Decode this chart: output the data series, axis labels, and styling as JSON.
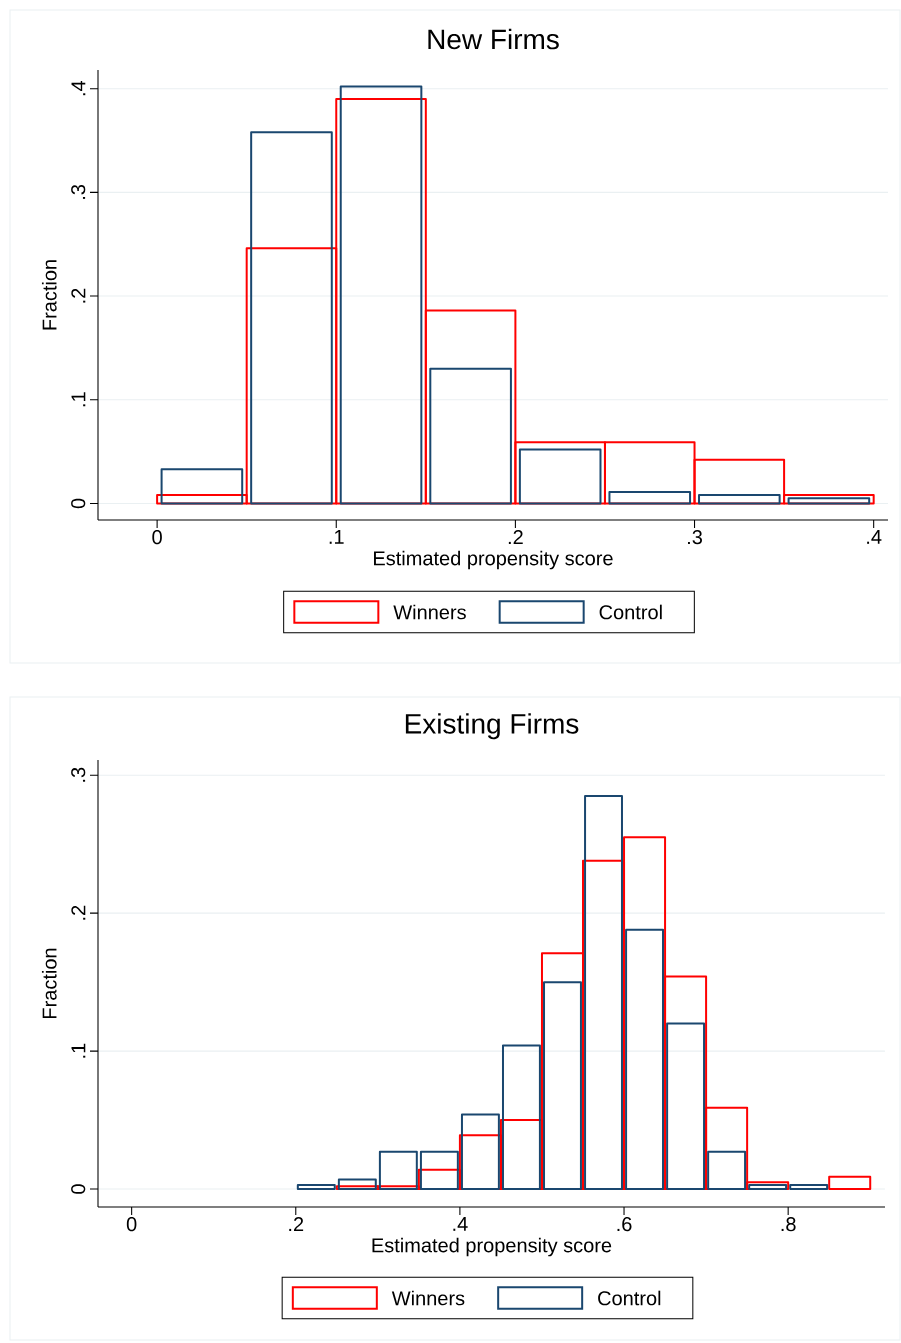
{
  "chart_data": [
    {
      "type": "histogram",
      "title": "New Firms",
      "xlabel": "Estimated propensity score",
      "ylabel": "Fraction",
      "bins": [
        0,
        0.05,
        0.1,
        0.15,
        0.2,
        0.25,
        0.3,
        0.35,
        0.4
      ],
      "series": [
        {
          "name": "Winners",
          "color": "#ff0000",
          "values": [
            0.008,
            0.246,
            0.39,
            0.186,
            0.059,
            0.059,
            0.042,
            0.008
          ]
        },
        {
          "name": "Control",
          "color": "#1a476f",
          "values": [
            0.033,
            0.358,
            0.402,
            0.13,
            0.052,
            0.011,
            0.008,
            0.005
          ]
        }
      ],
      "xlim": [
        -0.033,
        0.408
      ],
      "ylim": [
        -0.016,
        0.418
      ],
      "xticks": [
        0,
        {
          "value": 0.1,
          "label": ".1"
        },
        {
          "value": 0.2,
          "label": ".2"
        },
        {
          "value": 0.3,
          "label": ".3"
        },
        {
          "value": 0.4,
          "label": ".4"
        }
      ],
      "yticks": [
        0,
        {
          "value": 0.1,
          "label": ".1"
        },
        {
          "value": 0.2,
          "label": ".2"
        },
        {
          "value": 0.3,
          "label": ".3"
        },
        {
          "value": 0.4,
          "label": ".4"
        }
      ],
      "grid": "y",
      "legend": "bottom"
    },
    {
      "type": "histogram",
      "title": "Existing Firms",
      "xlabel": "Estimated propensity score",
      "ylabel": "Fraction",
      "bins": [
        0.2,
        0.25,
        0.3,
        0.35,
        0.4,
        0.45,
        0.5,
        0.55,
        0.6,
        0.65,
        0.7,
        0.75,
        0.8,
        0.85,
        0.9
      ],
      "series": [
        {
          "name": "Winners",
          "color": "#ff0000",
          "values": [
            null,
            0.002,
            0.002,
            0.014,
            0.039,
            0.05,
            0.171,
            0.238,
            0.255,
            0.154,
            0.059,
            0.005,
            null,
            0.009
          ]
        },
        {
          "name": "Control",
          "color": "#1a476f",
          "values": [
            0.003,
            0.007,
            0.027,
            0.027,
            0.054,
            0.104,
            0.15,
            0.285,
            0.188,
            0.12,
            0.027,
            0.003,
            0.003,
            null
          ]
        }
      ],
      "xlim": [
        -0.041,
        0.918
      ],
      "ylim": [
        -0.013,
        0.311
      ],
      "xticks": [
        0,
        {
          "value": 0.2,
          "label": ".2"
        },
        {
          "value": 0.4,
          "label": ".4"
        },
        {
          "value": 0.6,
          "label": ".6"
        },
        {
          "value": 0.8,
          "label": ".8"
        }
      ],
      "yticks": [
        0,
        {
          "value": 0.1,
          "label": ".1"
        },
        {
          "value": 0.2,
          "label": ".2"
        },
        {
          "value": 0.3,
          "label": ".3"
        }
      ],
      "grid": "y",
      "legend": "bottom"
    }
  ]
}
